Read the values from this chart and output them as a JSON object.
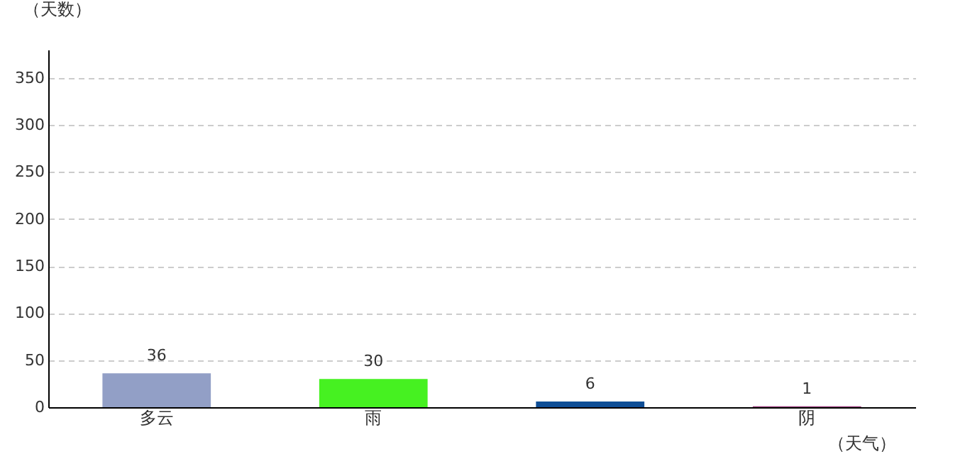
{
  "chart_data": {
    "type": "bar",
    "xlabel": "（天气）",
    "ylabel": "（天数）",
    "categories": [
      "多云",
      "雨",
      null,
      "阴"
    ],
    "values": [
      36,
      30,
      6,
      1
    ],
    "colors": [
      "#929fc6",
      "#46f121",
      "#0e4e96",
      "#9b3a7e"
    ],
    "ylim": [
      0,
      380
    ],
    "yticks": [
      0,
      50,
      100,
      150,
      200,
      250,
      300,
      350
    ],
    "grid": "y",
    "data_labels": true
  }
}
